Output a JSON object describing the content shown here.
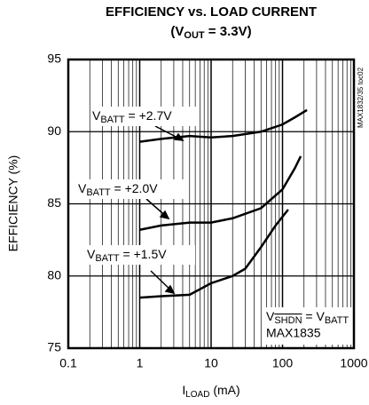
{
  "chart_data": {
    "type": "line",
    "title": "EFFICIENCY vs. LOAD CURRENT",
    "subtitle": {
      "main": "(V",
      "sub": "OUT",
      "rest": " = 3.3V)"
    },
    "xlabel": {
      "main": "I",
      "sub": "LOAD",
      "rest": " (mA)"
    },
    "ylabel": "EFFICIENCY (%)",
    "side_text": "MAX1832/35 toc02",
    "note": {
      "main": "V",
      "sub_overline": "SHDN",
      "mid": " = V",
      "sub": "BATT",
      "line2": "MAX1835"
    },
    "xscale": "log",
    "xlim": [
      0.1,
      1000
    ],
    "xticks": [
      0.1,
      1,
      10,
      100,
      1000
    ],
    "ylim": [
      75,
      95
    ],
    "yticks": [
      75,
      80,
      85,
      90,
      95
    ],
    "grid": true,
    "series": [
      {
        "name": {
          "main": "V",
          "sub": "BATT",
          "rest": " = +2.7V"
        },
        "color": "#000000",
        "x": [
          1,
          2,
          5,
          10,
          20,
          50,
          100,
          150,
          220
        ],
        "values": [
          89.3,
          89.5,
          89.7,
          89.6,
          89.7,
          90.0,
          90.5,
          91.0,
          91.5
        ]
      },
      {
        "name": {
          "main": "V",
          "sub": "BATT",
          "rest": " = +2.0V"
        },
        "color": "#000000",
        "x": [
          1,
          2,
          5,
          10,
          20,
          50,
          100,
          150,
          180
        ],
        "values": [
          83.2,
          83.5,
          83.7,
          83.7,
          84.0,
          84.7,
          86.0,
          87.5,
          88.3
        ]
      },
      {
        "name": {
          "main": "V",
          "sub": "BATT",
          "rest": " = +1.5V"
        },
        "color": "#000000",
        "x": [
          1,
          2,
          5,
          10,
          20,
          30,
          50,
          80,
          120
        ],
        "values": [
          78.5,
          78.6,
          78.7,
          79.5,
          80.0,
          80.5,
          82.0,
          83.5,
          84.6
        ]
      }
    ]
  }
}
